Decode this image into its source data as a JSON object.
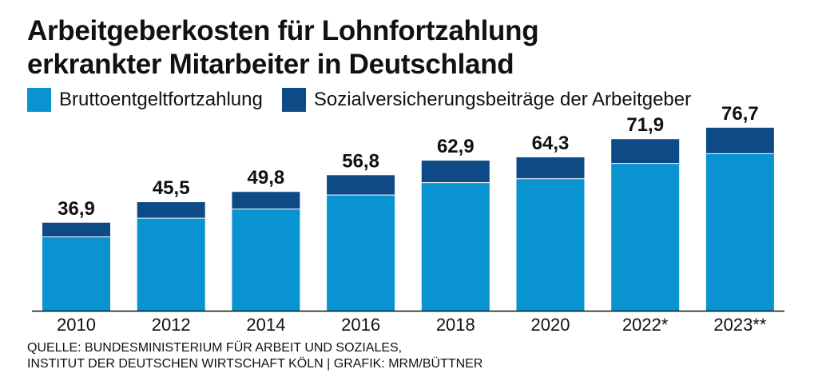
{
  "chart_data": {
    "type": "bar",
    "stacked": true,
    "title_line1": "Arbeitgeberkosten für Lohnfortzahlung",
    "title_line2": "erkrankter Mitarbeiter in Deutschland",
    "categories": [
      "2010",
      "2012",
      "2014",
      "2016",
      "2018",
      "2020",
      "2022*",
      "2023**"
    ],
    "series": [
      {
        "name": "Bruttoentgeltfortzahlung",
        "color": "#0a93d1",
        "values": [
          30.9,
          38.8,
          42.6,
          48.5,
          53.7,
          55.3,
          61.7,
          65.8
        ]
      },
      {
        "name": "Sozialversicherungsbeiträge der Arbeitgeber",
        "color": "#0e4a86",
        "values": [
          6.0,
          6.7,
          7.2,
          8.3,
          9.2,
          9.0,
          10.2,
          10.9
        ]
      }
    ],
    "totals": [
      "36,9",
      "45,5",
      "49,8",
      "56,8",
      "62,9",
      "64,3",
      "71,9",
      "76,7"
    ],
    "ylim": [
      0,
      80
    ],
    "legend_position": "top"
  },
  "source": {
    "line1": "QUELLE: BUNDESMINISTERIUM FÜR ARBEIT UND SOZIALES,",
    "line2": "INSTITUT DER DEUTSCHEN WIRTSCHAFT KÖLN | GRAFIK: MRM/BÜTTNER"
  }
}
